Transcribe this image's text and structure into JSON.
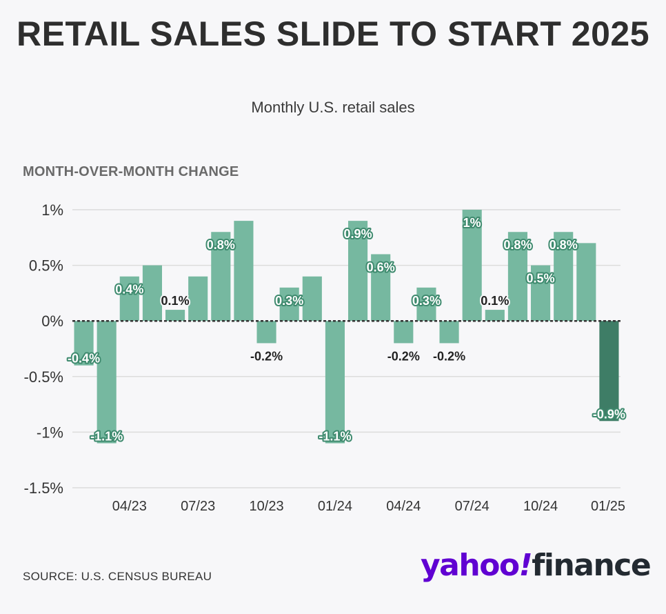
{
  "header": {
    "title": "RETAIL SALES SLIDE TO START 2025",
    "subtitle": "Monthly U.S. retail sales",
    "section_label": "MONTH-OVER-MONTH CHANGE"
  },
  "footer": {
    "source": "SOURCE: U.S. CENSUS BUREAU",
    "logo": {
      "part1": "yahoo",
      "part2": "!",
      "part3": "finance"
    }
  },
  "colors": {
    "bar": "#76b8a0",
    "bar_highlight": "#3e7d66",
    "grid": "#dcdcdc",
    "zero_line": "#333333",
    "label_text": "#ffffff",
    "label_stroke": "#3e8a6e",
    "label_text_dark": "#222222"
  },
  "chart_data": {
    "type": "bar",
    "title": "RETAIL SALES SLIDE TO START 2025",
    "subtitle": "Monthly U.S. retail sales",
    "ylabel": "MONTH-OVER-MONTH CHANGE",
    "ylim": [
      -1.5,
      1.0
    ],
    "yticks": [
      1,
      0.5,
      0,
      -0.5,
      -1,
      -1.5
    ],
    "ytick_labels": [
      "1%",
      "0.5%",
      "0%",
      "-0.5%",
      "-1%",
      "-1.5%"
    ],
    "categories": [
      "02/23",
      "03/23",
      "04/23",
      "05/23",
      "06/23",
      "07/23",
      "08/23",
      "09/23",
      "10/23",
      "11/23",
      "12/23",
      "01/24",
      "02/24",
      "03/24",
      "04/24",
      "05/24",
      "06/24",
      "07/24",
      "08/24",
      "09/24",
      "10/24",
      "11/24",
      "12/24",
      "01/25"
    ],
    "xtick_labels": [
      {
        "index": 2,
        "label": "04/23"
      },
      {
        "index": 5,
        "label": "07/23"
      },
      {
        "index": 8,
        "label": "10/23"
      },
      {
        "index": 11,
        "label": "01/24"
      },
      {
        "index": 14,
        "label": "04/24"
      },
      {
        "index": 17,
        "label": "07/24"
      },
      {
        "index": 20,
        "label": "10/24"
      },
      {
        "index": 23,
        "label": "01/25"
      }
    ],
    "values": [
      -0.4,
      -1.1,
      0.4,
      0.5,
      0.1,
      0.4,
      0.8,
      0.9,
      -0.2,
      0.3,
      0.4,
      -1.1,
      0.9,
      0.6,
      -0.2,
      0.3,
      -0.2,
      1.0,
      0.1,
      0.8,
      0.5,
      0.8,
      0.7,
      -0.9
    ],
    "data_labels": [
      {
        "index": 0,
        "text": "-0.4%",
        "style": "badge"
      },
      {
        "index": 1,
        "text": "-1.1%",
        "style": "badge"
      },
      {
        "index": 2,
        "text": "0.4%",
        "style": "badge"
      },
      {
        "index": 4,
        "text": "0.1%",
        "style": "plain"
      },
      {
        "index": 6,
        "text": "0.8%",
        "style": "badge"
      },
      {
        "index": 8,
        "text": "-0.2%",
        "style": "plain"
      },
      {
        "index": 9,
        "text": "0.3%",
        "style": "badge"
      },
      {
        "index": 11,
        "text": "-1.1%",
        "style": "badge"
      },
      {
        "index": 12,
        "text": "0.9%",
        "style": "badge"
      },
      {
        "index": 13,
        "text": "0.6%",
        "style": "badge"
      },
      {
        "index": 14,
        "text": "-0.2%",
        "style": "plain"
      },
      {
        "index": 15,
        "text": "0.3%",
        "style": "badge"
      },
      {
        "index": 16,
        "text": "-0.2%",
        "style": "plain"
      },
      {
        "index": 17,
        "text": "1%",
        "style": "badge"
      },
      {
        "index": 18,
        "text": "0.1%",
        "style": "plain"
      },
      {
        "index": 19,
        "text": "0.8%",
        "style": "badge"
      },
      {
        "index": 20,
        "text": "0.5%",
        "style": "badge"
      },
      {
        "index": 21,
        "text": "0.8%",
        "style": "badge"
      },
      {
        "index": 23,
        "text": "-0.9%",
        "style": "badge"
      }
    ],
    "highlight_index": 23,
    "grid": true,
    "legend": "none"
  }
}
